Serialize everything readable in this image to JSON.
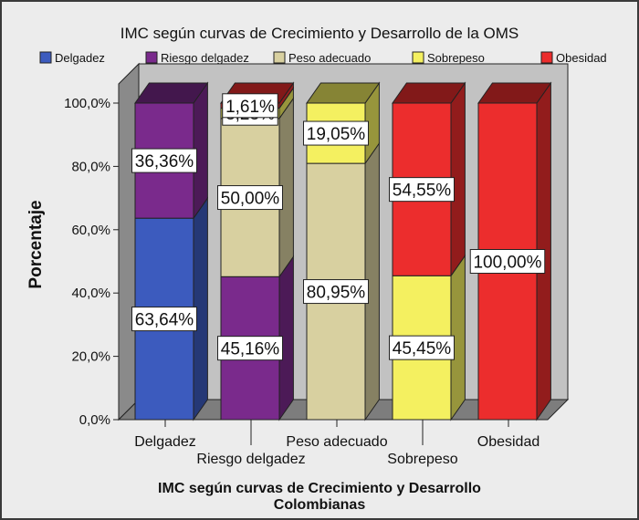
{
  "chart_data": {
    "type": "bar",
    "stacked": true,
    "title": "IMC según curvas de Crecimiento y Desarrollo de la OMS",
    "xlabel": "IMC según curvas de Crecimiento y Desarrollo Colombianas",
    "xlabel_lines": [
      "IMC según curvas de Crecimiento y Desarrollo",
      "Colombianas"
    ],
    "ylabel": "Porcentaje",
    "ylim": [
      0,
      100
    ],
    "y_ticks": [
      "0,0%",
      "20,0%",
      "40,0%",
      "60,0%",
      "80,0%",
      "100,0%"
    ],
    "legend_position": "top",
    "categories": [
      "Delgadez",
      "Riesgo delgadez",
      "Peso adecuado",
      "Sobrepeso",
      "Obesidad"
    ],
    "series": [
      {
        "name": "Delgadez",
        "color": "#3c5bbe",
        "values": [
          63.64,
          0,
          0,
          0,
          0
        ],
        "labels": [
          "63,64%",
          "",
          "",
          "",
          ""
        ]
      },
      {
        "name": "Riesgo delgadez",
        "color": "#7a2a8c",
        "values": [
          36.36,
          45.16,
          0,
          0,
          0
        ],
        "labels": [
          "36,36%",
          "45,16%",
          "",
          "",
          ""
        ]
      },
      {
        "name": "Peso adecuado",
        "color": "#d8d0a0",
        "values": [
          0,
          50.0,
          80.95,
          0,
          0
        ],
        "labels": [
          "",
          "50,00%",
          "80,95%",
          "",
          ""
        ]
      },
      {
        "name": "Sobrepeso",
        "color": "#f4f060",
        "values": [
          0,
          3.23,
          19.05,
          45.45,
          0
        ],
        "labels": [
          "",
          "3,23%",
          "19,05%",
          "45,45%",
          ""
        ]
      },
      {
        "name": "Obesidad",
        "color": "#ec2d2d",
        "values": [
          0,
          1.61,
          0,
          54.55,
          100.0
        ],
        "labels": [
          "",
          "1,61%",
          "",
          "54,55%",
          "100,00%"
        ]
      }
    ]
  }
}
